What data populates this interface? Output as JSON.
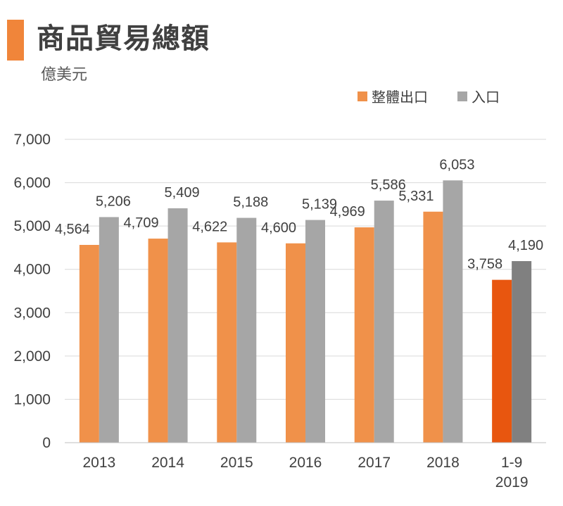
{
  "header": {
    "title": "商品貿易總額",
    "unit": "億美元"
  },
  "colors": {
    "accent": "#f0853a",
    "export": "#f0914a",
    "import": "#a6a6a6",
    "export_highlight": "#e8560f",
    "import_highlight": "#808080",
    "grid": "#d9d9d9"
  },
  "chart_data": {
    "type": "bar",
    "title": "商品貿易總額",
    "subtitle": "億美元",
    "categories": [
      "2013",
      "2014",
      "2015",
      "2016",
      "2017",
      "2018",
      "1-9 2019"
    ],
    "category_lines": [
      [
        "2013"
      ],
      [
        "2014"
      ],
      [
        "2015"
      ],
      [
        "2016"
      ],
      [
        "2017"
      ],
      [
        "2018"
      ],
      [
        "1-9",
        "2019"
      ]
    ],
    "series": [
      {
        "name": "整體出口",
        "values": [
          4564,
          4709,
          4622,
          4600,
          4969,
          5331,
          3758
        ]
      },
      {
        "name": "入口",
        "values": [
          5206,
          5409,
          5188,
          5139,
          5586,
          6053,
          4190
        ]
      }
    ],
    "value_labels": [
      [
        "4,564",
        "4,709",
        "4,622",
        "4,600",
        "4,969",
        "5,331",
        "3,758"
      ],
      [
        "5,206",
        "5,409",
        "5,188",
        "5,139",
        "5,586",
        "6,053",
        "4,190"
      ]
    ],
    "ylim": [
      0,
      7000
    ],
    "yticks": [
      0,
      1000,
      2000,
      3000,
      4000,
      5000,
      6000,
      7000
    ],
    "ytick_labels": [
      "0",
      "1,000",
      "2,000",
      "3,000",
      "4,000",
      "5,000",
      "6,000",
      "7,000"
    ],
    "grid": true,
    "legend_position": "top-right"
  }
}
